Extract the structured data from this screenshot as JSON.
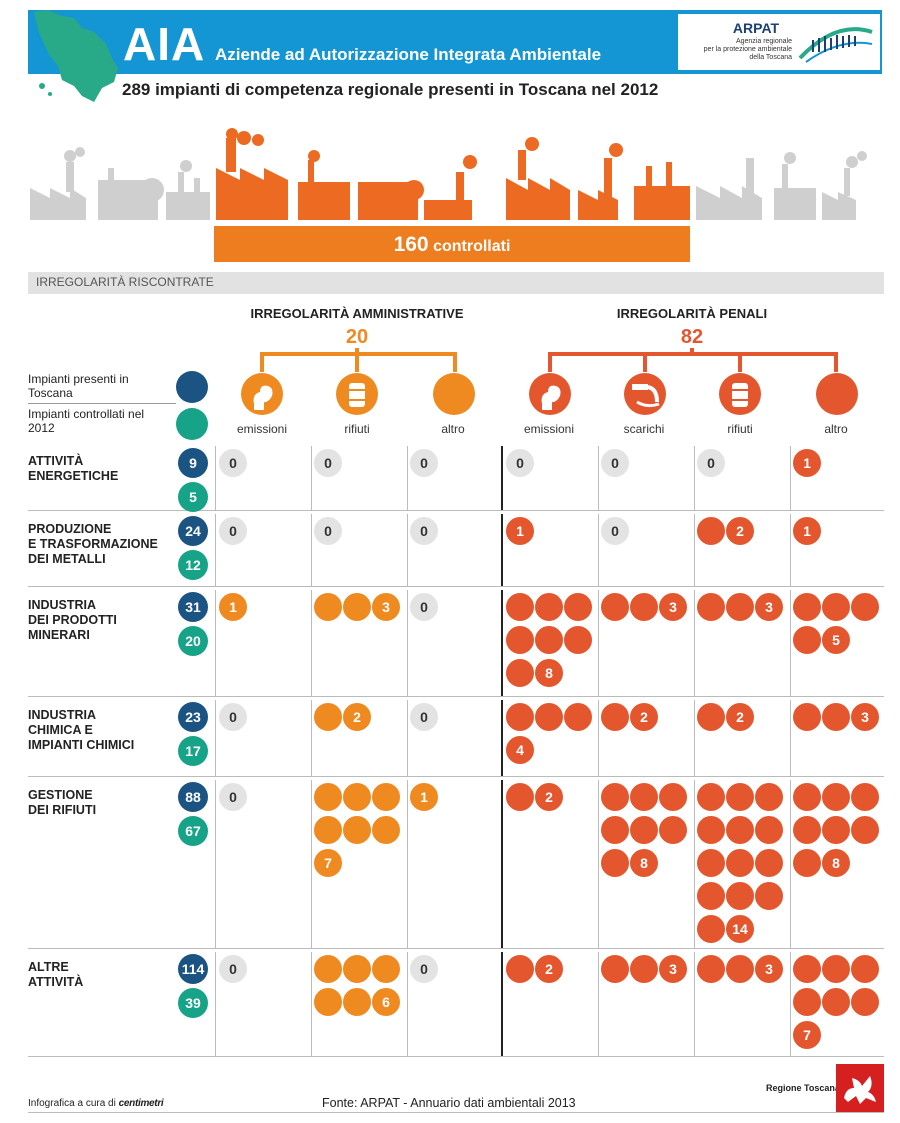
{
  "header": {
    "abbr": "AIA",
    "full_name": "Aziende ad Autorizzazione Integrata Ambientale",
    "subtitle": "289 impianti di competenza regionale presenti in Toscana nel 2012",
    "logo_name": "ARPAT",
    "logo_tagline": "Agenzia regionale\nper la protezione ambientale\ndella Toscana"
  },
  "controlled": {
    "value": "160",
    "label": "controllati"
  },
  "section_label": "IRREGOLARITÀ RISCONTRATE",
  "legend": {
    "present": "Impianti presenti in Toscana",
    "controlled": "Impianti controllati nel 2012"
  },
  "colors": {
    "banner": "#1596d4",
    "present": "#1b5482",
    "controlled": "#17a387",
    "administrative": "#ef8a20",
    "criminal": "#e4572e",
    "zero": "#e3e3e3"
  },
  "groups": [
    {
      "key": "administrative",
      "title": "IRREGOLARITÀ AMMINISTRATIVE",
      "total": 20,
      "categories": [
        {
          "label": "emissioni",
          "icon": "smoke-icon"
        },
        {
          "label": "rifiuti",
          "icon": "barrel-icon"
        },
        {
          "label": "altro",
          "icon": "plain-circle-icon"
        }
      ]
    },
    {
      "key": "criminal",
      "title": "IRREGOLARITÀ PENALI",
      "total": 82,
      "categories": [
        {
          "label": "emissioni",
          "icon": "smoke-icon"
        },
        {
          "label": "scarichi",
          "icon": "pipe-discharge-icon"
        },
        {
          "label": "rifiuti",
          "icon": "barrel-icon"
        },
        {
          "label": "altro",
          "icon": "plain-circle-icon"
        }
      ]
    }
  ],
  "chart_data": {
    "type": "table",
    "columns": [
      "amministrative emissioni",
      "amministrative rifiuti",
      "amministrative altro",
      "penali emissioni",
      "penali scarichi",
      "penali rifiuti",
      "penali altro"
    ],
    "rows": [
      {
        "sector": "ATTIVITÀ\nENERGETICHE",
        "present": 9,
        "controlled": 5,
        "values": [
          0,
          0,
          0,
          0,
          0,
          0,
          1
        ]
      },
      {
        "sector": "PRODUZIONE\nE TRASFORMAZIONE\nDEI METALLI",
        "present": 24,
        "controlled": 12,
        "values": [
          0,
          0,
          0,
          1,
          0,
          2,
          1
        ]
      },
      {
        "sector": "INDUSTRIA\nDEI PRODOTTI\nMINERARI",
        "present": 31,
        "controlled": 20,
        "values": [
          1,
          3,
          0,
          8,
          3,
          3,
          5
        ]
      },
      {
        "sector": "INDUSTRIA\nCHIMICA E\nIMPIANTI CHIMICI",
        "present": 23,
        "controlled": 17,
        "values": [
          0,
          2,
          0,
          4,
          2,
          2,
          3
        ]
      },
      {
        "sector": "GESTIONE\nDEI RIFIUTI",
        "present": 88,
        "controlled": 67,
        "values": [
          0,
          7,
          1,
          2,
          8,
          14,
          8
        ]
      },
      {
        "sector": "ALTRE\nATTIVITÀ",
        "present": 114,
        "controlled": 39,
        "values": [
          0,
          6,
          0,
          2,
          3,
          3,
          7
        ]
      }
    ]
  },
  "footer": {
    "credit": "Infografica a cura di",
    "credit_brand": "centimetri",
    "source": "Fonte: ARPAT - Annuario dati ambientali 2013",
    "region": "Regione Toscana"
  }
}
